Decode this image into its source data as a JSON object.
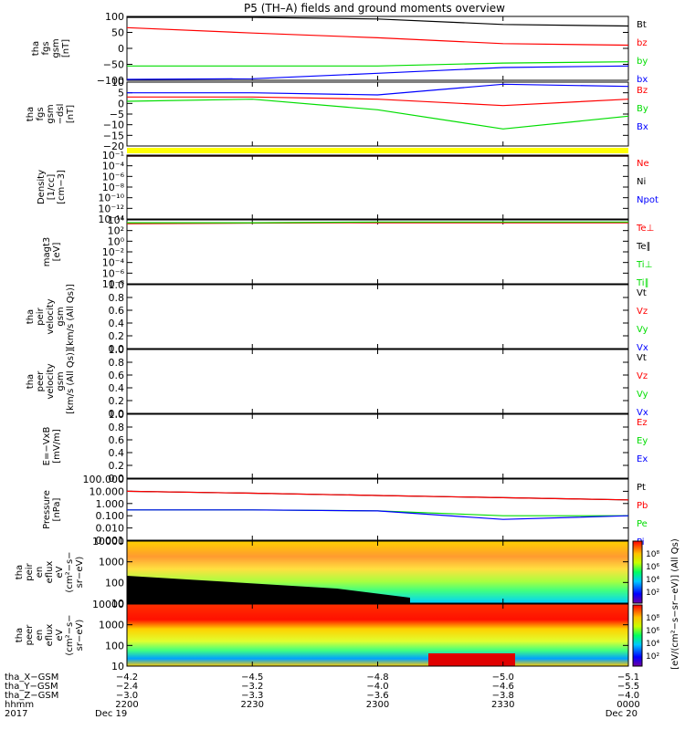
{
  "title": "P5 (TH–A) fields and ground moments overview",
  "colors": {
    "black": "#000000",
    "red": "#ff0000",
    "green": "#00dd00",
    "blue": "#0000ff",
    "yellow": "#ffff00"
  },
  "panels": [
    {
      "id": "fgs-gsm",
      "ylabel": [
        "tha",
        "fgs",
        "gsm",
        "[nT]"
      ],
      "yticks": [
        "100",
        "50",
        "0",
        "−50",
        "−100"
      ],
      "legend": [
        {
          "text": "Bt",
          "color": "black"
        },
        {
          "text": "bz",
          "color": "red"
        },
        {
          "text": "by",
          "color": "green"
        },
        {
          "text": "bx",
          "color": "blue"
        }
      ]
    },
    {
      "id": "fgs-gsm-dsl",
      "ylabel": [
        "tha",
        "fgs",
        "gsm",
        "−dsl",
        "[nT]"
      ],
      "yticks": [
        "10",
        "5",
        "0",
        "−5",
        "−10",
        "−15",
        "−20"
      ],
      "legend": [
        {
          "text": "Bz",
          "color": "red"
        },
        {
          "text": "By",
          "color": "green"
        },
        {
          "text": "Bx",
          "color": "blue"
        }
      ]
    },
    {
      "id": "density",
      "ylabel": [
        "Density",
        "[1/cc]",
        "[cm−3]"
      ],
      "yticks": [
        "10⁻¹",
        "10⁻⁴",
        "10⁻⁶",
        "10⁻⁸",
        "10⁻¹⁰",
        "10⁻¹²",
        "10⁻¹⁴"
      ],
      "legend": [
        {
          "text": "Ne",
          "color": "red"
        },
        {
          "text": "Ni",
          "color": "black"
        },
        {
          "text": "Npot",
          "color": "blue"
        }
      ]
    },
    {
      "id": "temp",
      "ylabel": [
        "magt3",
        "[eV]"
      ],
      "yticks": [
        "10⁴",
        "10²",
        "10⁰",
        "10⁻²",
        "10⁻⁴",
        "10⁻⁶",
        "10⁻⁸"
      ],
      "legend": [
        {
          "text": "Te⊥",
          "color": "red"
        },
        {
          "text": "Te∥",
          "color": "black"
        },
        {
          "text": "Ti⊥",
          "color": "green"
        },
        {
          "text": "Ti∥",
          "color": "green"
        }
      ]
    },
    {
      "id": "peir-vel",
      "ylabel": [
        "tha",
        "peir",
        "velocity",
        "gsm",
        "[km/s (All Qs)]"
      ],
      "yticks": [
        "1.0",
        "0.8",
        "0.6",
        "0.4",
        "0.2",
        "0.0"
      ],
      "legend": [
        {
          "text": "Vt",
          "color": "black"
        },
        {
          "text": "Vz",
          "color": "red"
        },
        {
          "text": "Vy",
          "color": "green"
        },
        {
          "text": "Vx",
          "color": "blue"
        }
      ]
    },
    {
      "id": "peer-vel",
      "ylabel": [
        "tha",
        "peer",
        "velocity",
        "gsm",
        "[km/s (All Qs)]"
      ],
      "yticks": [
        "1.0",
        "0.8",
        "0.6",
        "0.4",
        "0.2",
        "0.0"
      ],
      "legend": [
        {
          "text": "Vt",
          "color": "black"
        },
        {
          "text": "Vz",
          "color": "red"
        },
        {
          "text": "Vy",
          "color": "green"
        },
        {
          "text": "Vx",
          "color": "blue"
        }
      ]
    },
    {
      "id": "efield",
      "ylabel": [
        "E=−VxB",
        "[mV/m]"
      ],
      "yticks": [
        "1.0",
        "0.8",
        "0.6",
        "0.4",
        "0.2",
        "0.0"
      ],
      "legend": [
        {
          "text": "Ez",
          "color": "red"
        },
        {
          "text": "Ey",
          "color": "green"
        },
        {
          "text": "Ex",
          "color": "blue"
        }
      ]
    },
    {
      "id": "pressure",
      "ylabel": [
        "Pressure",
        "[nPa]"
      ],
      "yticks": [
        "100.000",
        "10.000",
        "1.000",
        "0.100",
        "0.010",
        "0.001"
      ],
      "legend": [
        {
          "text": "Pt",
          "color": "black"
        },
        {
          "text": "Pb",
          "color": "red"
        },
        {
          "text": "Pe",
          "color": "green"
        },
        {
          "text": "Pi",
          "color": "blue"
        }
      ]
    },
    {
      "id": "peir-en",
      "ylabel": [
        "tha",
        "peir",
        "en",
        "eflux",
        "eV",
        "(cm²−s−",
        "sr−eV)"
      ],
      "yticks": [
        "10000",
        "1000",
        "100",
        "10"
      ],
      "legend": []
    },
    {
      "id": "peer-en",
      "ylabel": [
        "tha",
        "peer",
        "en",
        "eflux",
        "eV",
        "(cm²−s−",
        "sr−eV)"
      ],
      "yticks": [
        "10000",
        "1000",
        "100",
        "10"
      ],
      "legend": []
    }
  ],
  "colorbar": {
    "label": "[eV/(cm²−s−sr−eV)] (All Qs)",
    "upper_ticks": [
      "10⁸",
      "10⁶",
      "10⁴",
      "10²"
    ],
    "lower_ticks": [
      "10⁸",
      "10⁶",
      "10⁴",
      "10²"
    ]
  },
  "xaxis": {
    "row_labels": [
      "tha_X−GSM",
      "tha_Y−GSM",
      "tha_Z−GSM",
      "hhmm",
      "2017"
    ],
    "ticks": [
      {
        "rows": [
          "−4.2",
          "−2.4",
          "−3.0",
          "2200",
          "Dec 19"
        ]
      },
      {
        "rows": [
          "−4.5",
          "−3.2",
          "−3.3",
          "2230",
          ""
        ]
      },
      {
        "rows": [
          "−4.8",
          "−4.0",
          "−3.6",
          "2300",
          ""
        ]
      },
      {
        "rows": [
          "−5.0",
          "−4.6",
          "−3.8",
          "2330",
          ""
        ]
      },
      {
        "rows": [
          "−5.1",
          "−5.5",
          "−4.0",
          "0000",
          "Dec 20"
        ]
      }
    ]
  },
  "chart_data": [
    {
      "type": "line",
      "title": "tha fgs gsm [nT]",
      "x_time": [
        "2200",
        "2230",
        "2300",
        "2330",
        "0000"
      ],
      "ylim": [
        -100,
        100
      ],
      "series": [
        {
          "name": "Bt",
          "color": "black",
          "values": [
            107,
            100,
            92,
            75,
            70
          ]
        },
        {
          "name": "bz",
          "color": "red",
          "values": [
            65,
            48,
            33,
            15,
            10
          ]
        },
        {
          "name": "by",
          "color": "green",
          "values": [
            -55,
            -55,
            -55,
            -46,
            -42
          ]
        },
        {
          "name": "bx",
          "color": "blue",
          "values": [
            -115,
            -95,
            -78,
            -60,
            -55
          ]
        }
      ]
    },
    {
      "type": "line",
      "title": "tha fgs gsm−dsl [nT]",
      "x_time": [
        "2200",
        "2230",
        "2300",
        "2330",
        "0000"
      ],
      "ylim": [
        -20,
        10
      ],
      "series": [
        {
          "name": "Bz",
          "color": "red",
          "values": [
            3,
            3,
            2,
            -1,
            2
          ]
        },
        {
          "name": "By",
          "color": "green",
          "values": [
            1,
            2,
            -3,
            -12,
            -6
          ]
        },
        {
          "name": "Bx",
          "color": "blue",
          "values": [
            5,
            5,
            4,
            9,
            8
          ]
        }
      ]
    },
    {
      "type": "line",
      "title": "Density [1/cc]",
      "x_time": [
        "2200",
        "2230",
        "2300",
        "2330",
        "0000"
      ],
      "scale": "log",
      "series": [
        {
          "name": "Ne",
          "color": "red",
          "values": [
            0.3,
            0.3,
            0.3,
            0.1,
            0.2
          ]
        },
        {
          "name": "Ni",
          "color": "black",
          "values": [
            0.3,
            0.3,
            0.3,
            0.1,
            0.2
          ]
        }
      ]
    },
    {
      "type": "line",
      "title": "magt3 [eV]",
      "x_time": [
        "2200",
        "2230",
        "2300",
        "2330",
        "0000"
      ],
      "scale": "log",
      "series": [
        {
          "name": "Te⊥",
          "color": "red",
          "values": [
            2000,
            2500,
            3000,
            3000,
            3000
          ]
        },
        {
          "name": "Ti⊥",
          "color": "green",
          "values": [
            3000,
            3000,
            4000,
            4000,
            4000
          ]
        }
      ]
    },
    {
      "type": "line",
      "title": "Pressure [nPa]",
      "x_time": [
        "2200",
        "2230",
        "2300",
        "2330",
        "0000"
      ],
      "scale": "log",
      "ylim": [
        0.001,
        100
      ],
      "series": [
        {
          "name": "Pt",
          "color": "black",
          "values": [
            10,
            7,
            4.5,
            3,
            2
          ]
        },
        {
          "name": "Pb",
          "color": "red",
          "values": [
            10,
            7,
            4.5,
            3,
            2
          ]
        },
        {
          "name": "Pe",
          "color": "green",
          "values": [
            0.3,
            0.3,
            0.25,
            0.1,
            0.1
          ]
        },
        {
          "name": "Pi",
          "color": "blue",
          "values": [
            0.3,
            0.3,
            0.25,
            0.05,
            0.1
          ]
        }
      ]
    },
    {
      "type": "heatmap",
      "title": "tha peir en eflux",
      "y_range_eV": [
        10,
        10000
      ]
    },
    {
      "type": "heatmap",
      "title": "tha peer en eflux",
      "y_range_eV": [
        10,
        10000
      ]
    }
  ]
}
